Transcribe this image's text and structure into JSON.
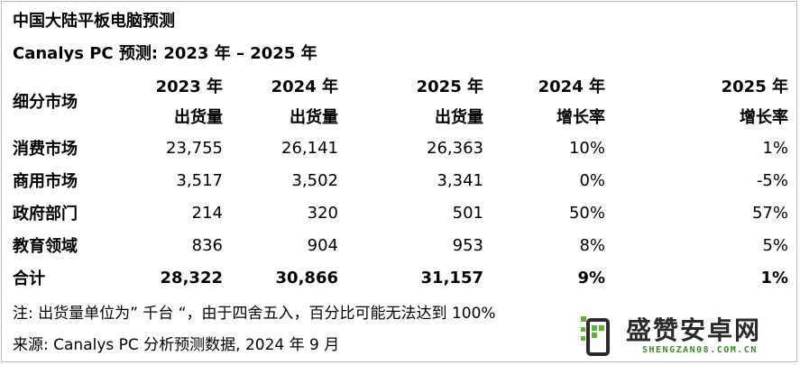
{
  "title": "中国大陆平板电脑预测",
  "subtitle": "Canalys PC 预测: 2023 年 – 2025 年",
  "table": {
    "segment_header": "细分市场",
    "columns": [
      {
        "line1": "2023 年",
        "line2": "出货量"
      },
      {
        "line1": "2024 年",
        "line2": "出货量"
      },
      {
        "line1": "2025 年",
        "line2": "出货量"
      },
      {
        "line1": "2024 年",
        "line2": "增长率"
      },
      {
        "line1": "2025 年",
        "line2": "增长率"
      }
    ],
    "rows": [
      {
        "label": "消费市场",
        "values": [
          "23,755",
          "26,141",
          "26,363",
          "10%",
          "1%"
        ]
      },
      {
        "label": "商用市场",
        "values": [
          "3,517",
          "3,502",
          "3,341",
          "0%",
          "-5%"
        ]
      },
      {
        "label": "政府部门",
        "values": [
          "214",
          "320",
          "501",
          "50%",
          "57%"
        ]
      },
      {
        "label": "教育领域",
        "values": [
          "836",
          "904",
          "953",
          "8%",
          "5%"
        ]
      }
    ],
    "total": {
      "label": "合计",
      "values": [
        "28,322",
        "30,866",
        "31,157",
        "9%",
        "1%"
      ]
    }
  },
  "notes": {
    "note": "注: 出货量单位为” 千台 “，由于四舍五入，百分比可能无法达到 100%",
    "source": "来源: Canalys PC 分析预测数据, 2024 年 9 月"
  },
  "watermark": {
    "name": "盛赞安卓网",
    "url": "SHENGZAN08.COM.CN",
    "colors": {
      "green": "#5cb531",
      "dark": "#2a2a2a"
    }
  }
}
